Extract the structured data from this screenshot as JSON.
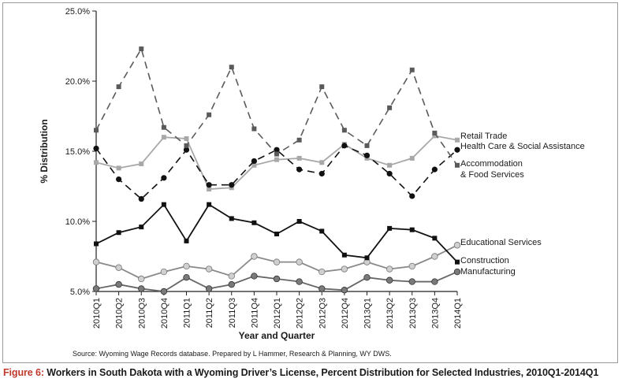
{
  "caption": {
    "figure_label": "Figure 6:",
    "text": " Workers in South Dakota with a Wyoming Driver’s License, Percent Distribution for Selected Industries, 2010Q1-2014Q1"
  },
  "source_note": "Source: Wyoming Wage Records database. Prepared by L Hammer, Research & Planning, WY DWS.",
  "chart_data": {
    "type": "line",
    "title": "",
    "xlabel": "Year and Quarter",
    "ylabel": "% Distribution",
    "ylim": [
      5.0,
      25.0
    ],
    "yticks": [
      "5.0%",
      "10.0%",
      "15.0%",
      "20.0%",
      "25.0%"
    ],
    "grid": false,
    "legend": "direct labels at right end of lines",
    "categories": [
      "2010Q1",
      "2010Q2",
      "2010Q3",
      "2010Q4",
      "2011Q1",
      "2011Q2",
      "2011Q3",
      "2011Q4",
      "2012Q1",
      "2012Q2",
      "2012Q3",
      "2012Q4",
      "2013Q1",
      "2013Q2",
      "2013Q3",
      "2013Q4",
      "2014Q1"
    ],
    "series": [
      {
        "name": "Retail Trade",
        "label_lines": [
          "Retail Trade"
        ],
        "color": "#a8a8a8",
        "line": "solid",
        "marker": "square",
        "values": [
          14.2,
          13.8,
          14.1,
          16.0,
          15.9,
          12.3,
          12.4,
          14.0,
          14.4,
          14.5,
          14.2,
          15.5,
          14.5,
          14.0,
          14.5,
          16.1,
          15.8
        ]
      },
      {
        "name": "Health Care & Social Assistance",
        "label_lines": [
          "Health Care & Social Assistance"
        ],
        "color": "#111111",
        "line": "dashed",
        "marker": "circle",
        "values": [
          15.2,
          13.0,
          11.6,
          13.1,
          15.1,
          12.6,
          12.6,
          14.3,
          15.1,
          13.7,
          13.4,
          15.4,
          14.7,
          13.4,
          11.8,
          13.7,
          15.1
        ]
      },
      {
        "name": "Accommodation & Food Services",
        "label_lines": [
          "Accommodation",
          "& Food Services"
        ],
        "color": "#5a5a5a",
        "line": "dashed",
        "marker": "square",
        "values": [
          16.5,
          19.6,
          22.3,
          16.7,
          15.4,
          17.6,
          21.0,
          16.6,
          14.8,
          15.8,
          19.6,
          16.5,
          15.4,
          18.1,
          20.8,
          16.3,
          14.0
        ]
      },
      {
        "name": "Educational Services",
        "label_lines": [
          "Educational Services"
        ],
        "color": "#8a8a8a",
        "line": "solid",
        "marker": "circle-light",
        "values": [
          7.1,
          6.7,
          5.9,
          6.4,
          6.8,
          6.6,
          6.1,
          7.5,
          7.1,
          7.1,
          6.4,
          6.6,
          7.1,
          6.6,
          6.8,
          7.5,
          8.3
        ]
      },
      {
        "name": "Construction",
        "label_lines": [
          "Construction"
        ],
        "color": "#111111",
        "line": "solid",
        "marker": "square",
        "values": [
          8.4,
          9.2,
          9.6,
          11.2,
          8.6,
          11.2,
          10.2,
          9.9,
          9.1,
          10.0,
          9.3,
          7.6,
          7.4,
          9.5,
          9.4,
          8.8,
          7.1
        ]
      },
      {
        "name": "Manufacturing",
        "label_lines": [
          "Manufacturing"
        ],
        "color": "#666666",
        "line": "solid",
        "marker": "circle-dark",
        "values": [
          5.2,
          5.5,
          5.2,
          5.0,
          6.0,
          5.2,
          5.5,
          6.1,
          5.9,
          5.7,
          5.2,
          5.1,
          6.0,
          5.8,
          5.7,
          5.7,
          6.4
        ]
      }
    ]
  }
}
